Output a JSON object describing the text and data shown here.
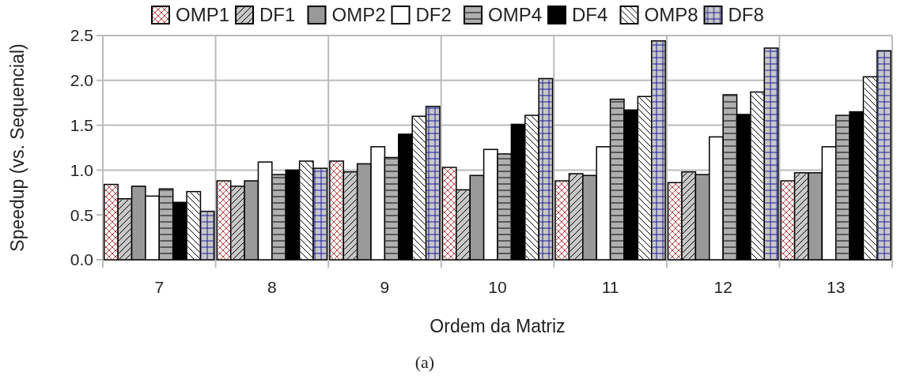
{
  "chart_data": {
    "type": "bar",
    "xlabel": "Ordem da Matriz",
    "ylabel": "Speedup (vs. Sequencial)",
    "categories": [
      "7",
      "8",
      "9",
      "10",
      "11",
      "12",
      "13"
    ],
    "series": [
      {
        "name": "OMP1",
        "color": "#ffffff",
        "values": [
          0.84,
          0.88,
          1.1,
          1.03,
          0.88,
          0.86,
          0.88
        ]
      },
      {
        "name": "DF1",
        "color": "#c8c8c8",
        "values": [
          0.68,
          0.82,
          0.98,
          0.78,
          0.96,
          0.98,
          0.97
        ]
      },
      {
        "name": "OMP2",
        "color": "#999999",
        "values": [
          0.82,
          0.88,
          1.07,
          0.94,
          0.94,
          0.95,
          0.97
        ]
      },
      {
        "name": "DF2",
        "color": "#ffffff",
        "values": [
          0.71,
          1.09,
          1.26,
          1.23,
          1.26,
          1.37,
          1.26
        ]
      },
      {
        "name": "OMP4",
        "color": "#b0b0b0",
        "values": [
          0.79,
          0.95,
          1.14,
          1.18,
          1.79,
          1.84,
          1.61
        ]
      },
      {
        "name": "DF4",
        "color": "#000000",
        "values": [
          0.64,
          1.0,
          1.4,
          1.51,
          1.67,
          1.62,
          1.65
        ]
      },
      {
        "name": "OMP8",
        "color": "#ffffff",
        "values": [
          0.76,
          1.1,
          1.6,
          1.61,
          1.82,
          1.87,
          2.04
        ]
      },
      {
        "name": "DF8",
        "color": "#c8c8c8",
        "values": [
          0.54,
          1.02,
          1.71,
          2.02,
          2.44,
          2.36,
          2.33
        ]
      }
    ],
    "ylim": [
      0,
      2.5
    ],
    "yticks": [
      {
        "value": 0,
        "label": "0.0"
      },
      {
        "value": 0.5,
        "label": "0.5"
      },
      {
        "value": 1,
        "label": "1.0"
      },
      {
        "value": 1.5,
        "label": "1.5"
      },
      {
        "value": 2,
        "label": "2.0"
      },
      {
        "value": 2.5,
        "label": "2.5"
      }
    ],
    "grid": true,
    "legend": "top",
    "annotations": [
      "(a)"
    ]
  }
}
